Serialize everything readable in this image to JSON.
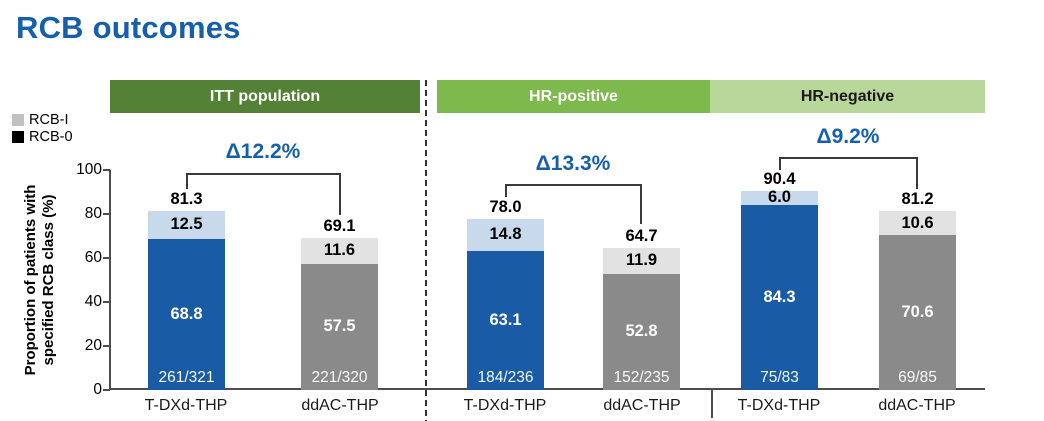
{
  "title": "RCB outcomes",
  "colors": {
    "title_blue": "#155fac",
    "delta_blue": "#155fac",
    "header_itt_green": "#538135",
    "header_hrpos_green": "#7db94d",
    "header_hrneg_green": "#b9d79b",
    "tdxd_dark_blue": "#1a5ba6",
    "tdxd_light_blue": "#c9d9ec",
    "control_dark_gray": "#8a8a8a",
    "control_light_gray": "#e2e2e2",
    "legend_rcb1_gray": "#c0c0c0",
    "legend_rcb0_black": "#000000",
    "axis_gray": "#4d4d4d"
  },
  "legend": {
    "rcb1_label": "RCB-I",
    "rcb0_label": "RCB-0"
  },
  "chart_data": {
    "type": "bar",
    "stacked": true,
    "title": "RCB outcomes",
    "ylabel": "Proportion of patients with specified RCB class (%)",
    "ylabel_line1": "Proportion of patients with",
    "ylabel_line2": "specified RCB class (%)",
    "ylim": [
      0,
      100
    ],
    "yticks": [
      0,
      20,
      40,
      60,
      80,
      100
    ],
    "legend_entries": [
      "RCB-I",
      "RCB-0"
    ],
    "legend_position": "upper-left",
    "grid": false,
    "groups": [
      {
        "header": "ITT population",
        "delta": "Δ12.2%",
        "bars": [
          {
            "arm": "T-DXd-THP",
            "total": "81.3",
            "rcb1": "12.5",
            "rcb0": "68.8",
            "fraction": "261/321"
          },
          {
            "arm": "ddAC-THP",
            "total": "69.1",
            "rcb1": "11.6",
            "rcb0": "57.5",
            "fraction": "221/320"
          }
        ]
      },
      {
        "header": "HR-positive",
        "delta": "Δ13.3%",
        "bars": [
          {
            "arm": "T-DXd-THP",
            "total": "78.0",
            "rcb1": "14.8",
            "rcb0": "63.1",
            "fraction": "184/236"
          },
          {
            "arm": "ddAC-THP",
            "total": "64.7",
            "rcb1": "11.9",
            "rcb0": "52.8",
            "fraction": "152/235"
          }
        ]
      },
      {
        "header": "HR-negative",
        "delta": "Δ9.2%",
        "bars": [
          {
            "arm": "T-DXd-THP",
            "total": "90.4",
            "rcb1": "6.0",
            "rcb0": "84.3",
            "fraction": "75/83"
          },
          {
            "arm": "ddAC-THP",
            "total": "81.2",
            "rcb1": "10.6",
            "rcb0": "70.6",
            "fraction": "69/85"
          }
        ]
      }
    ]
  }
}
